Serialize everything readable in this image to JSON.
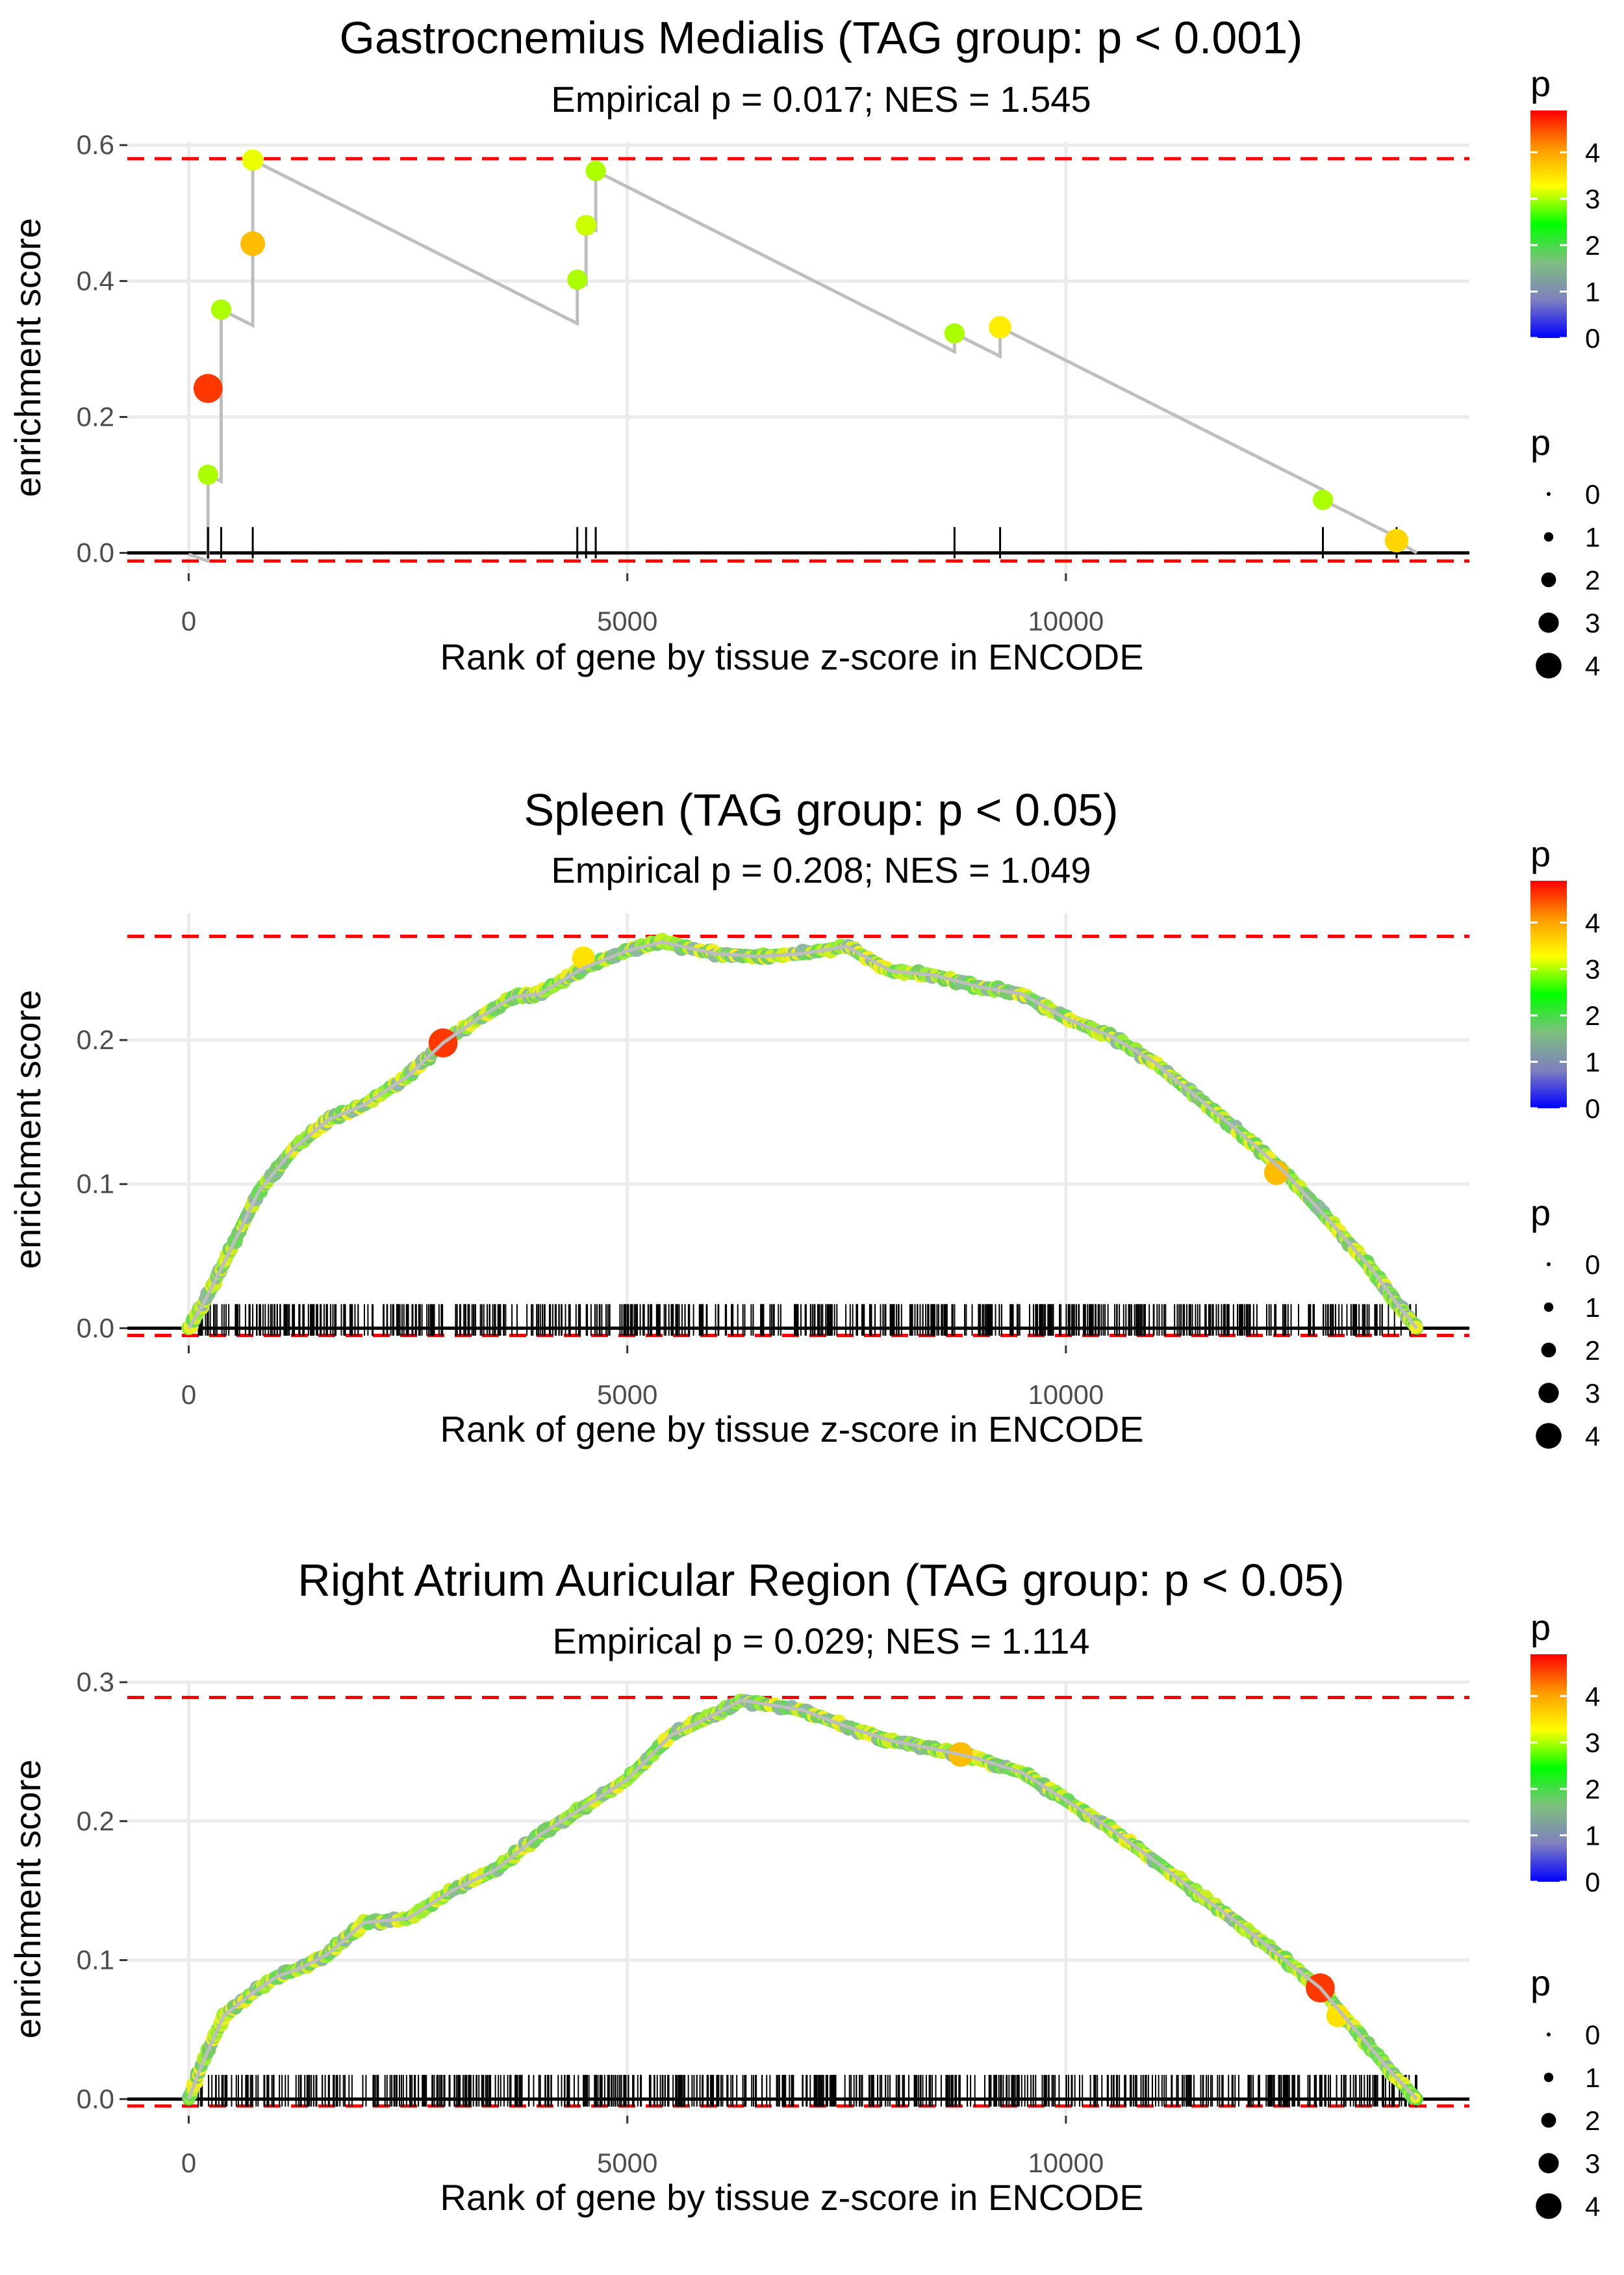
{
  "colors": {
    "grid": "#ebebeb",
    "threshold_line": "#ff0000",
    "es_line": "#bebebe",
    "gradient": [
      "#0000ff",
      "#7f7fbf",
      "#7fbf7f",
      "#00ff00",
      "#ffff00",
      "#ff9900",
      "#ff0000"
    ]
  },
  "chart_data": [
    {
      "type": "line",
      "title": "Gastrocnemius Medialis (TAG group: p < 0.001)",
      "subtitle": "Empirical p = 0.017; NES = 1.545",
      "xlabel": "Rank of gene by tissue z-score in ENCODE",
      "ylabel": "enrichment score",
      "xlim": [
        -700,
        14600
      ],
      "ylim": [
        -0.03,
        0.605
      ],
      "xticks": [
        0,
        5000,
        10000
      ],
      "xtick_labels": [
        "0",
        "5000",
        "10000"
      ],
      "yticks": [
        0,
        0.2,
        0.4,
        0.6
      ],
      "ytick_labels": [
        "0.0",
        "0.2",
        "0.4",
        "0.6"
      ],
      "max_es_line": 0.58,
      "min_es_line": -0.012,
      "gene_ranks": [
        220,
        370,
        730,
        4430,
        4530,
        4640,
        8730,
        9250,
        12930,
        13770
      ],
      "es_after_hit": [
        0.115,
        0.358,
        0.578,
        0.402,
        0.482,
        0.562,
        0.323,
        0.332,
        0.078,
        0.018
      ],
      "es_after_hit_pvalues": [
        3.0,
        3.0,
        3.2,
        3.0,
        3.1,
        3.0,
        3.0,
        3.4,
        3.0,
        3.6
      ],
      "es_start": -0.002,
      "es_end": 0.0,
      "x_end": 14000,
      "es_peak": {
        "rank": 220,
        "value": 0.242,
        "p": 4.6
      },
      "es_secondary": {
        "rank": 730,
        "value": 0.455,
        "p": 3.8
      }
    },
    {
      "type": "line",
      "title": "Spleen (TAG group: p < 0.05)",
      "subtitle": "Empirical p = 0.208; NES = 1.049",
      "xlabel": "Rank of gene by tissue z-score in ENCODE",
      "ylabel": "enrichment score",
      "xlim": [
        -700,
        14600
      ],
      "ylim": [
        -0.012,
        0.288
      ],
      "xticks": [
        0,
        5000,
        10000
      ],
      "xtick_labels": [
        "0",
        "5000",
        "10000"
      ],
      "yticks": [
        0,
        0.1,
        0.2
      ],
      "ytick_labels": [
        "0.0",
        "0.1",
        "0.2"
      ],
      "max_es_line": 0.272,
      "min_es_line": -0.005,
      "curve_x": [
        0,
        150,
        400,
        800,
        1200,
        1600,
        2000,
        2500,
        2900,
        3300,
        3700,
        4000,
        4500,
        5000,
        5400,
        6000,
        6500,
        7000,
        7500,
        8000,
        8500,
        9000,
        9500,
        10000,
        10500,
        11000,
        11500,
        12000,
        12500,
        13000,
        13500,
        13800,
        14000
      ],
      "curve_y": [
        0.0,
        0.015,
        0.045,
        0.095,
        0.125,
        0.145,
        0.155,
        0.175,
        0.198,
        0.215,
        0.23,
        0.232,
        0.25,
        0.262,
        0.268,
        0.26,
        0.258,
        0.26,
        0.265,
        0.248,
        0.245,
        0.237,
        0.232,
        0.215,
        0.203,
        0.185,
        0.16,
        0.135,
        0.108,
        0.075,
        0.04,
        0.015,
        0.0
      ],
      "highlight_points": [
        {
          "rank": 2900,
          "value": 0.198,
          "p": 4.6
        },
        {
          "rank": 12400,
          "value": 0.108,
          "p": 3.8
        },
        {
          "rank": 4500,
          "value": 0.257,
          "p": 3.5
        }
      ],
      "gene_count": 620,
      "gene_rank_range": [
        100,
        14000
      ]
    },
    {
      "type": "line",
      "title": "Right Atrium Auricular Region (TAG group: p < 0.05)",
      "subtitle": "Empirical p = 0.029; NES = 1.114",
      "xlabel": "Rank of gene by tissue z-score in ENCODE",
      "ylabel": "enrichment score",
      "xlim": [
        -700,
        14600
      ],
      "ylim": [
        -0.012,
        0.3
      ],
      "xticks": [
        0,
        5000,
        10000
      ],
      "xtick_labels": [
        "0",
        "5000",
        "10000"
      ],
      "yticks": [
        0,
        0.1,
        0.2,
        0.3
      ],
      "ytick_labels": [
        "0.0",
        "0.1",
        "0.2",
        "0.3"
      ],
      "max_es_line": 0.289,
      "min_es_line": -0.005,
      "curve_x": [
        0,
        150,
        400,
        700,
        1000,
        1300,
        1600,
        2000,
        2500,
        3000,
        3500,
        4000,
        4500,
        5000,
        5500,
        6000,
        6300,
        7000,
        7500,
        8000,
        8500,
        9000,
        9500,
        10000,
        10500,
        11000,
        11500,
        12000,
        12500,
        12900,
        13300,
        13700,
        14000
      ],
      "curve_y": [
        0.0,
        0.025,
        0.06,
        0.075,
        0.088,
        0.095,
        0.105,
        0.127,
        0.13,
        0.15,
        0.165,
        0.19,
        0.21,
        0.23,
        0.262,
        0.277,
        0.287,
        0.28,
        0.268,
        0.258,
        0.252,
        0.245,
        0.235,
        0.215,
        0.195,
        0.172,
        0.148,
        0.125,
        0.1,
        0.08,
        0.05,
        0.02,
        0.0
      ],
      "highlight_points": [
        {
          "rank": 12900,
          "value": 0.08,
          "p": 4.6
        },
        {
          "rank": 8800,
          "value": 0.248,
          "p": 3.8
        },
        {
          "rank": 13100,
          "value": 0.06,
          "p": 3.5
        }
      ],
      "gene_count": 620,
      "gene_rank_range": [
        100,
        14000
      ]
    }
  ],
  "legend": {
    "color_title": "p",
    "color_labels": [
      "4",
      "3",
      "2",
      "1",
      "0"
    ],
    "color_values": [
      4,
      3,
      2,
      1,
      0
    ],
    "color_range": [
      0,
      4.9
    ],
    "size_title": "p",
    "size_labels": [
      "0",
      "1",
      "2",
      "3",
      "4"
    ],
    "size_values": [
      0,
      1,
      2,
      3,
      4
    ]
  }
}
